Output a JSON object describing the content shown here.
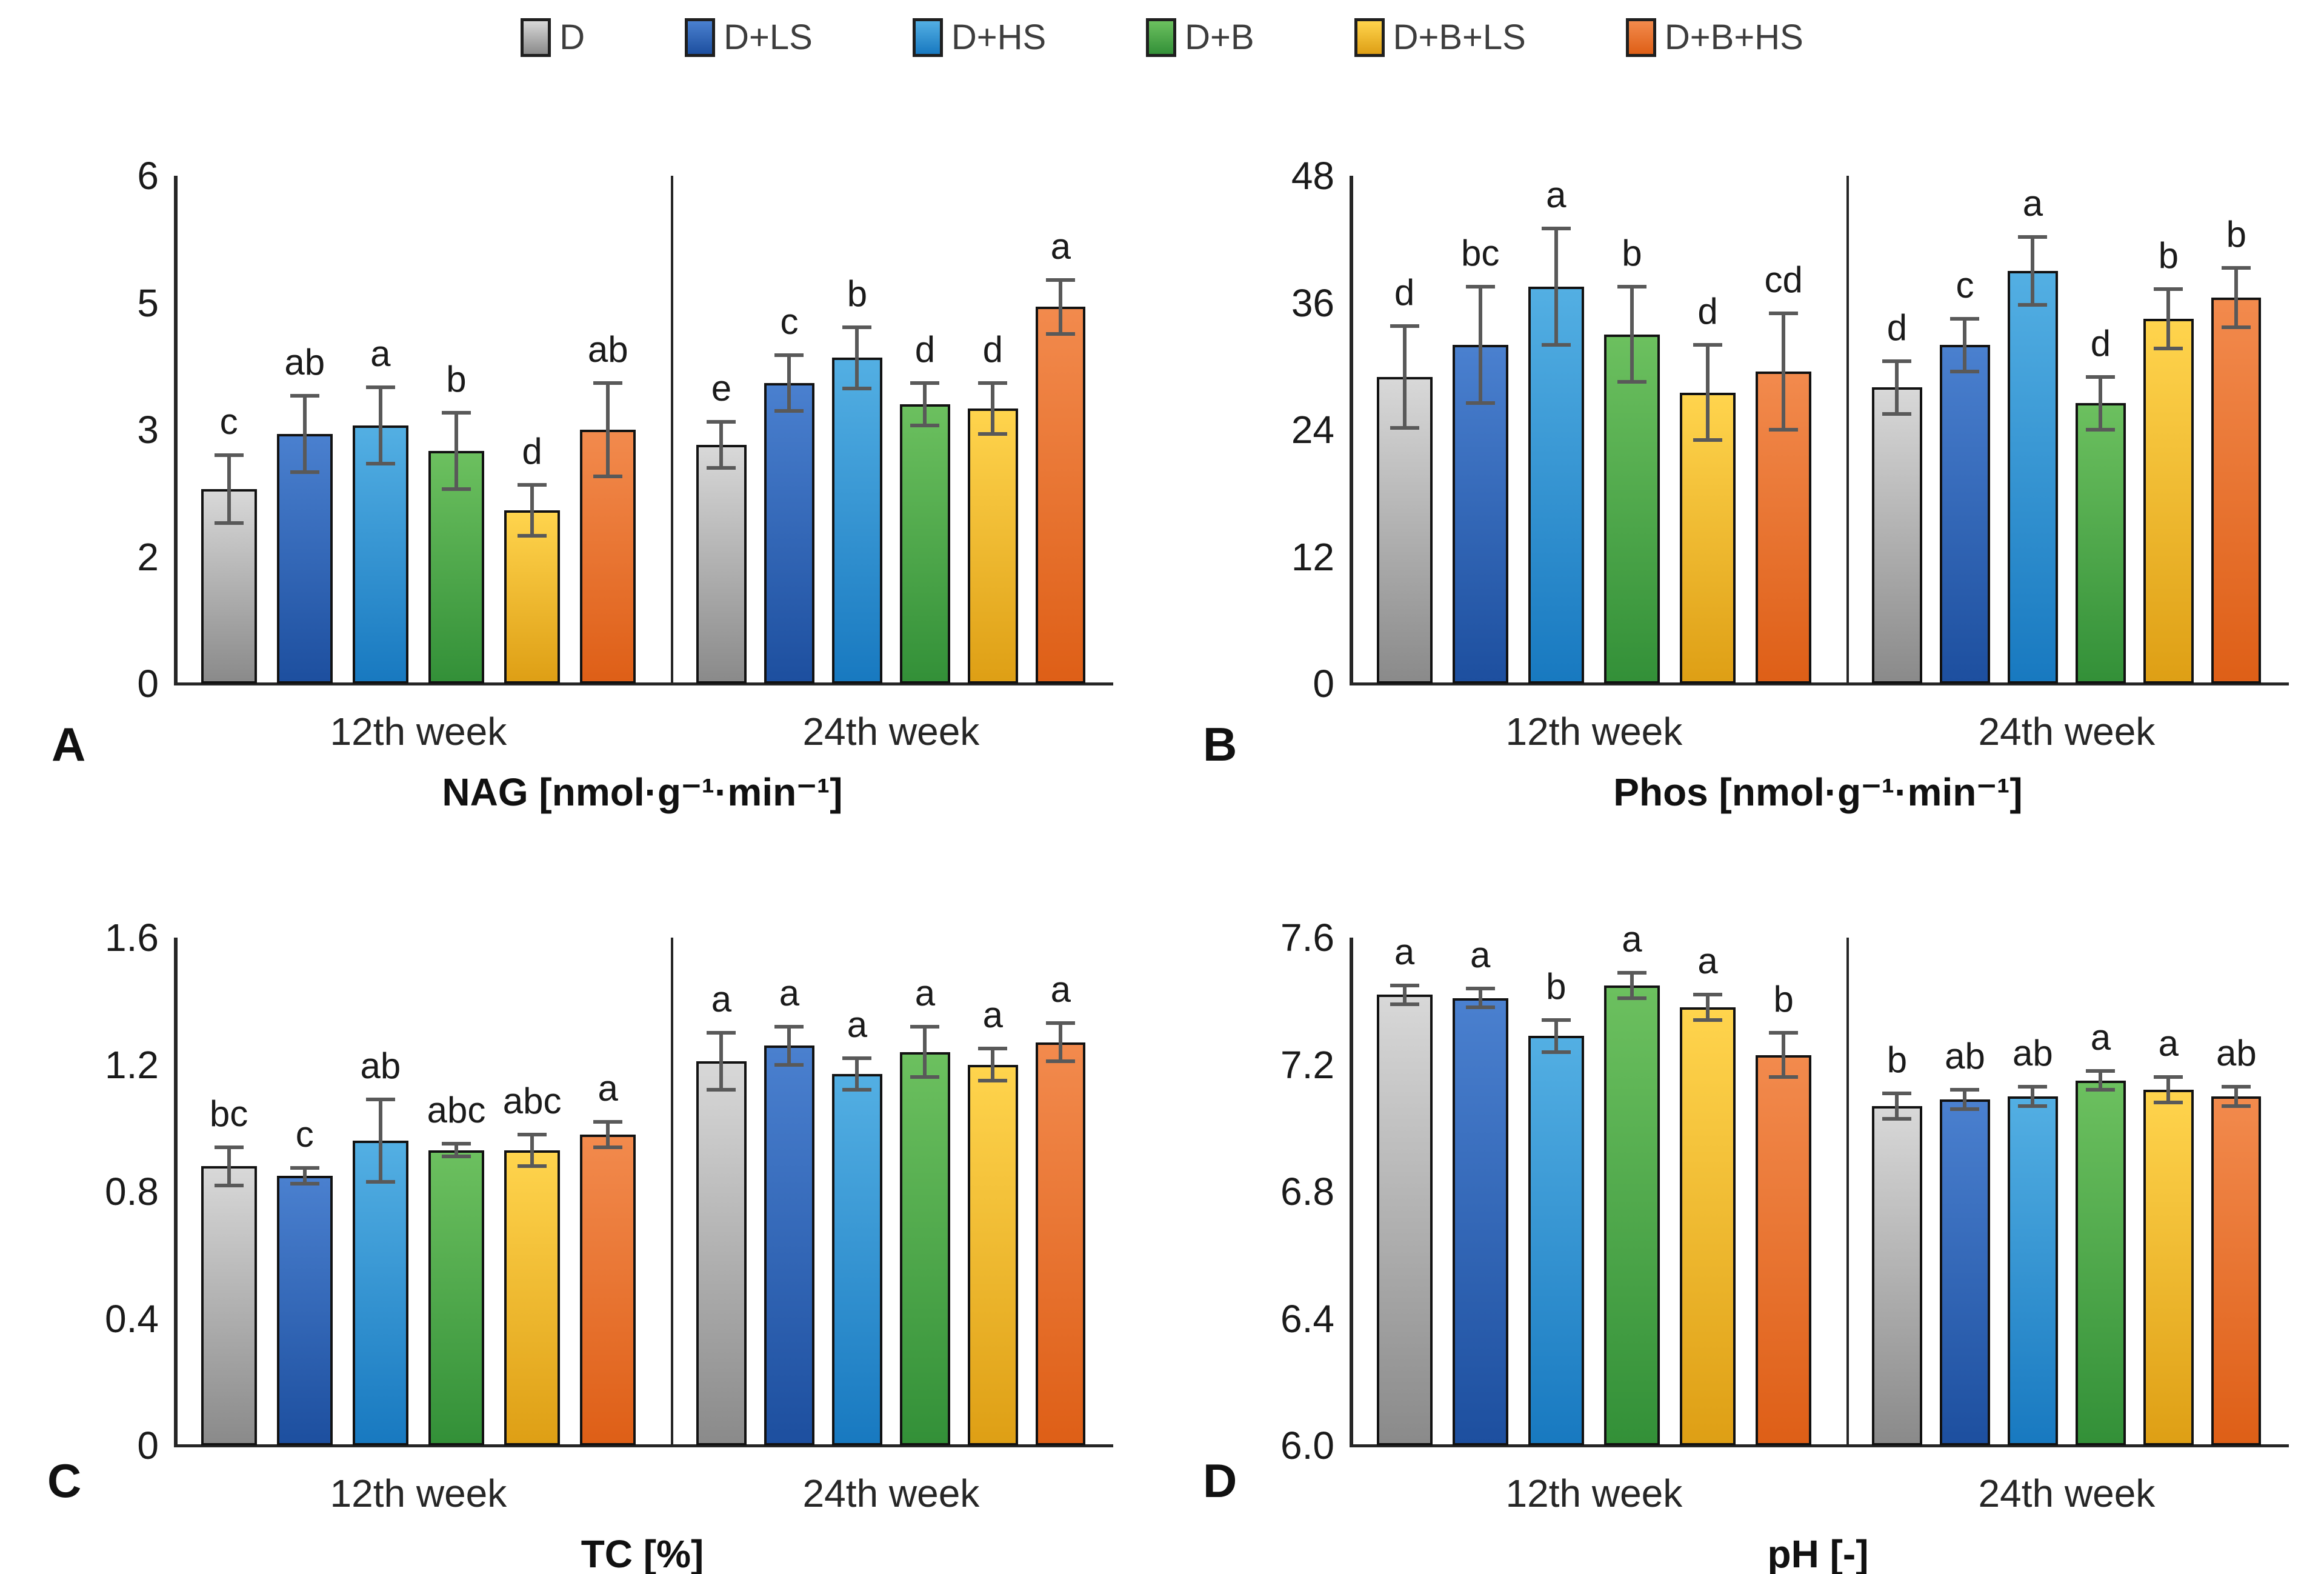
{
  "figure_type": "four-panel grouped bar chart with error bars and significance letters",
  "legend": {
    "items": [
      {
        "label": "D",
        "color_top": "#D8D8D8",
        "color_bottom": "#8A8A8A"
      },
      {
        "label": "D+LS",
        "color_top": "#4A80CF",
        "color_bottom": "#1D4F9F"
      },
      {
        "label": "D+HS",
        "color_top": "#53AFE3",
        "color_bottom": "#1879C0"
      },
      {
        "label": "D+B",
        "color_top": "#6CC05F",
        "color_bottom": "#339038"
      },
      {
        "label": "D+B+LS",
        "color_top": "#FFD44D",
        "color_bottom": "#DE9F15"
      },
      {
        "label": "D+B+HS",
        "color_top": "#F28A4D",
        "color_bottom": "#DE5F17"
      }
    ]
  },
  "colors": {
    "error_bar": "#595959",
    "axis": "#262626",
    "bar_border": "#121212",
    "text": "#1a1a1a"
  },
  "chart_data": {
    "type": "bar",
    "series_labels": [
      "D",
      "D+LS",
      "D+HS",
      "D+B",
      "D+B+LS",
      "D+B+HS"
    ],
    "categories": [
      "12th week",
      "24th week"
    ],
    "panels": [
      {
        "panel_letter": "A",
        "title": "NAG [nmol·g⁻¹·min⁻¹]",
        "ylim": [
          0,
          6
        ],
        "yticks": [
          {
            "label": "6",
            "value": 6
          },
          {
            "label": "5",
            "value": 4.5
          },
          {
            "label": "3",
            "value": 3
          },
          {
            "label": "2",
            "value": 1.5
          },
          {
            "label": "0",
            "value": 0
          }
        ],
        "groups": [
          {
            "label": "12th week",
            "values": [
              2.3,
              2.95,
              3.05,
              2.75,
              2.05,
              3.0
            ],
            "errors": [
              0.4,
              0.45,
              0.45,
              0.45,
              0.3,
              0.55
            ],
            "letters": [
              "c",
              "ab",
              "a",
              "b",
              "d",
              "ab"
            ]
          },
          {
            "label": "24th week",
            "values": [
              2.82,
              3.55,
              3.85,
              3.3,
              3.25,
              4.45
            ],
            "errors": [
              0.27,
              0.33,
              0.36,
              0.25,
              0.3,
              0.32
            ],
            "letters": [
              "e",
              "c",
              "b",
              "d",
              "d",
              "a"
            ]
          }
        ]
      },
      {
        "panel_letter": "B",
        "title": "Phos [nmol·g⁻¹·min⁻¹]",
        "ylim": [
          0,
          48
        ],
        "yticks": [
          {
            "label": "48",
            "value": 48
          },
          {
            "label": "36",
            "value": 36
          },
          {
            "label": "24",
            "value": 24
          },
          {
            "label": "12",
            "value": 12
          },
          {
            "label": "0",
            "value": 0
          }
        ],
        "groups": [
          {
            "label": "12th week",
            "values": [
              29,
              32,
              37.5,
              33,
              27.5,
              29.5
            ],
            "errors": [
              4.8,
              5.5,
              5.5,
              4.5,
              4.5,
              5.5
            ],
            "letters": [
              "d",
              "bc",
              "a",
              "b",
              "d",
              "cd"
            ]
          },
          {
            "label": "24th week",
            "values": [
              28,
              32,
              39,
              26.5,
              34.5,
              36.5
            ],
            "errors": [
              2.5,
              2.5,
              3.2,
              2.5,
              2.8,
              2.8
            ],
            "letters": [
              "d",
              "c",
              "a",
              "d",
              "b",
              "b"
            ]
          }
        ]
      },
      {
        "panel_letter": "C",
        "title": "TC [%]",
        "ylim": [
          0,
          1.6
        ],
        "yticks": [
          {
            "label": "1.6",
            "value": 1.6
          },
          {
            "label": "1.2",
            "value": 1.2
          },
          {
            "label": "0.8",
            "value": 0.8
          },
          {
            "label": "0.4",
            "value": 0.4
          },
          {
            "label": "0",
            "value": 0
          }
        ],
        "groups": [
          {
            "label": "12th week",
            "values": [
              0.88,
              0.85,
              0.96,
              0.93,
              0.93,
              0.98
            ],
            "errors": [
              0.06,
              0.025,
              0.13,
              0.02,
              0.05,
              0.04
            ],
            "letters": [
              "bc",
              "c",
              "ab",
              "abc",
              "abc",
              "a"
            ]
          },
          {
            "label": "24th week",
            "values": [
              1.21,
              1.26,
              1.17,
              1.24,
              1.2,
              1.27
            ],
            "errors": [
              0.09,
              0.06,
              0.05,
              0.08,
              0.05,
              0.06
            ],
            "letters": [
              "a",
              "a",
              "a",
              "a",
              "a",
              "a"
            ]
          }
        ]
      },
      {
        "panel_letter": "D",
        "title": "pH [-]",
        "ylim": [
          6.0,
          7.6
        ],
        "yticks": [
          {
            "label": "7.6",
            "value": 7.6
          },
          {
            "label": "7.2",
            "value": 7.2
          },
          {
            "label": "6.8",
            "value": 6.8
          },
          {
            "label": "6.4",
            "value": 6.4
          },
          {
            "label": "6.0",
            "value": 6.0
          }
        ],
        "groups": [
          {
            "label": "12th week",
            "values": [
              7.42,
              7.41,
              7.29,
              7.45,
              7.38,
              7.23
            ],
            "errors": [
              0.03,
              0.03,
              0.05,
              0.04,
              0.04,
              0.07
            ],
            "letters": [
              "a",
              "a",
              "b",
              "a",
              "a",
              "b"
            ]
          },
          {
            "label": "24th week",
            "values": [
              7.07,
              7.09,
              7.1,
              7.15,
              7.12,
              7.1
            ],
            "errors": [
              0.04,
              0.03,
              0.03,
              0.03,
              0.04,
              0.03
            ],
            "letters": [
              "b",
              "ab",
              "ab",
              "a",
              "a",
              "ab"
            ]
          }
        ]
      }
    ]
  }
}
